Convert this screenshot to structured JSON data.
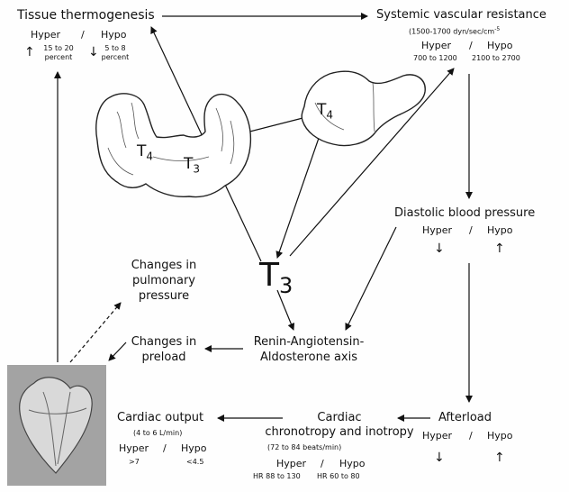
{
  "tissue_thermogenesis": {
    "title": "Tissue thermogenesis",
    "hyper": "Hyper",
    "sep": "/",
    "hypo": "Hypo",
    "hyper_value_line1": "15 to 20",
    "hyper_value_line2": "percent",
    "hypo_value_line1": "5 to 8",
    "hypo_value_line2": "percent",
    "hyper_arrow": "↑",
    "hypo_arrow": "↓"
  },
  "svr": {
    "title": "Systemic vascular resistance",
    "units": "(1500-1700 dyn/sec/cm",
    "units_sup": "-5",
    "hyper": "Hyper",
    "sep": "/",
    "hypo": "Hypo",
    "hyper_value": "700 to 1200",
    "hypo_value": "2100 to 2700"
  },
  "hormones": {
    "t4_left": "T",
    "t4_left_sub": "4",
    "t3_left": "T",
    "t3_left_sub": "3",
    "t4_liver": "T",
    "t4_liver_sub": "4",
    "t3_big": "T",
    "t3_big_sub": "3"
  },
  "dbp": {
    "title": "Diastolic blood pressure",
    "hyper": "Hyper",
    "sep": "/",
    "hypo": "Hypo",
    "hyper_arrow": "↓",
    "hypo_arrow": "↑"
  },
  "pulmonary": {
    "line1": "Changes in",
    "line2": "pulmonary",
    "line3": "pressure"
  },
  "preload": {
    "line1": "Changes in",
    "line2": "preload"
  },
  "raa": {
    "line1": "Renin-Angiotensin-",
    "line2": "Aldosterone axis"
  },
  "cardiac_output": {
    "title": "Cardiac output",
    "units": "(4 to 6 L/min)",
    "hyper": "Hyper",
    "sep": "/",
    "hypo": "Hypo",
    "hyper_value": ">7",
    "hypo_value": "<4.5"
  },
  "chronotropy": {
    "line1": "Cardiac",
    "line2": "chronotropy and inotropy",
    "units": "(72 to 84 beats/min)",
    "hyper": "Hyper",
    "sep": "/",
    "hypo": "Hypo",
    "hyper_value": "HR 88 to 130",
    "hypo_value": "HR 60 to 80"
  },
  "afterload": {
    "title": "Afterload",
    "hyper": "Hyper",
    "sep": "/",
    "hypo": "Hypo",
    "hyper_arrow": "↓",
    "hypo_arrow": "↑"
  }
}
